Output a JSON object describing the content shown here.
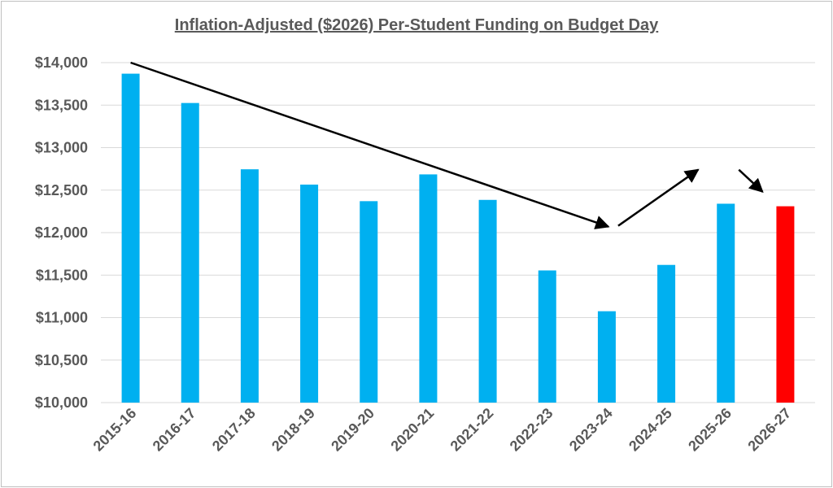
{
  "chart_data": {
    "type": "bar",
    "title": "Inflation-Adjusted ($2026) Per-Student Funding on Budget Day",
    "xlabel": "",
    "ylabel": "",
    "categories": [
      "2015-16",
      "2016-17",
      "2017-18",
      "2018-19",
      "2019-20",
      "2020-21",
      "2021-22",
      "2022-23",
      "2023-24",
      "2024-25",
      "2025-26",
      "2026-27"
    ],
    "values": [
      13870,
      13525,
      12745,
      12565,
      12370,
      12685,
      12385,
      11555,
      11075,
      11620,
      12340,
      12310
    ],
    "ylim": [
      10000,
      14000
    ],
    "yticks": [
      "$10,000",
      "$10,500",
      "$11,000",
      "$11,500",
      "$12,000",
      "$12,500",
      "$13,000",
      "$13,500",
      "$14,000"
    ],
    "grid": true,
    "legend": "none",
    "colors": {
      "bar": "#00b0f0",
      "highlight_bar": "#ff0000",
      "highlight_category": "2026-27",
      "gridline": "#d9d9d9",
      "text": "#595959",
      "arrow": "#000000"
    },
    "annotations": [
      {
        "type": "arrow",
        "from": [
          "2015-16",
          14000
        ],
        "to": [
          "2023-24",
          12070
        ]
      },
      {
        "type": "arrow",
        "from": [
          "2023-24",
          12080
        ],
        "to": [
          "2025-26",
          12740
        ]
      },
      {
        "type": "arrow",
        "from": [
          "2025-26",
          12740
        ],
        "to": [
          "2026-27",
          12480
        ]
      }
    ]
  }
}
